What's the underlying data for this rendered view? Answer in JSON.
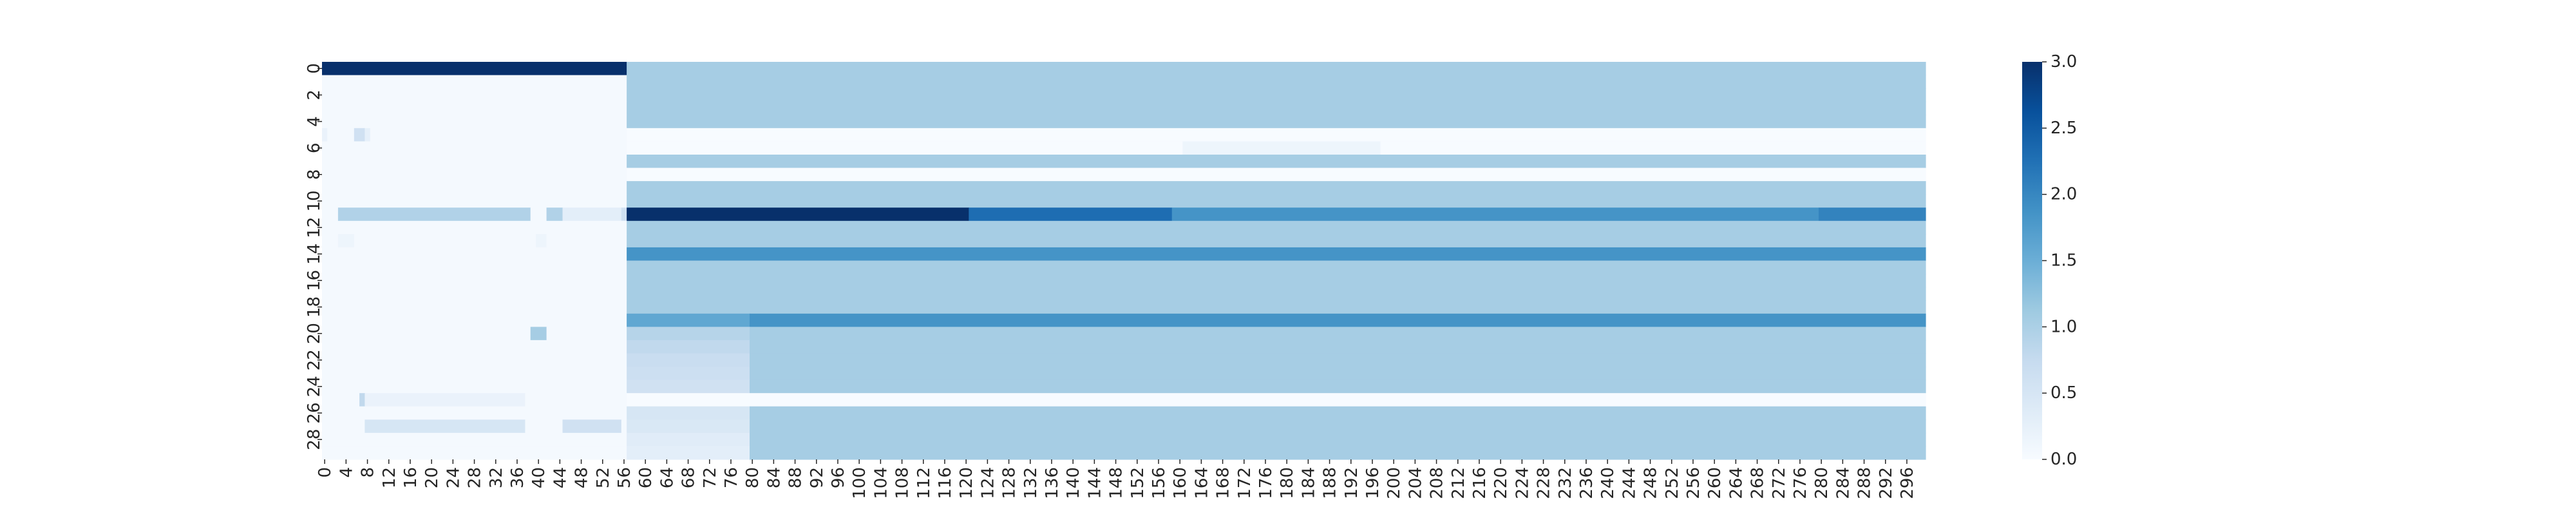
{
  "chart_data": {
    "type": "heatmap",
    "title": "",
    "xlabel": "",
    "ylabel": "",
    "n_rows": 30,
    "n_cols": 300,
    "x_tick_step": 4,
    "y_tick_step": 2,
    "colorbar": {
      "vmin": 0.0,
      "vmax": 3.0,
      "ticks": [
        "0.0",
        "0.5",
        "1.0",
        "1.5",
        "2.0",
        "2.5",
        "3.0"
      ],
      "colormap": "Blues",
      "stops": [
        "#f7fbff",
        "#deebf7",
        "#c6dbef",
        "#9ecae1",
        "#6baed6",
        "#4292c6",
        "#2171b5",
        "#08519c",
        "#08306b"
      ]
    },
    "default_value": 0.05,
    "row_blocks": [
      {
        "row": 0,
        "segments": [
          [
            0,
            56,
            3.0
          ],
          [
            57,
            299,
            1.05
          ]
        ]
      },
      {
        "row": 1,
        "segments": [
          [
            0,
            56,
            0.05
          ],
          [
            57,
            299,
            1.05
          ]
        ]
      },
      {
        "row": 2,
        "segments": [
          [
            0,
            56,
            0.05
          ],
          [
            57,
            299,
            1.05
          ]
        ]
      },
      {
        "row": 3,
        "segments": [
          [
            0,
            56,
            0.05
          ],
          [
            57,
            299,
            1.05
          ]
        ]
      },
      {
        "row": 4,
        "segments": [
          [
            0,
            56,
            0.05
          ],
          [
            57,
            299,
            1.05
          ]
        ]
      },
      {
        "row": 5,
        "segments": [
          [
            0,
            0,
            0.2
          ],
          [
            1,
            5,
            0.05
          ],
          [
            6,
            7,
            0.6
          ],
          [
            8,
            8,
            0.25
          ],
          [
            9,
            56,
            0.05
          ],
          [
            57,
            299,
            0.0
          ]
        ]
      },
      {
        "row": 6,
        "segments": [
          [
            0,
            56,
            0.05
          ],
          [
            57,
            160,
            0.0
          ],
          [
            161,
            197,
            0.15
          ],
          [
            198,
            299,
            0.0
          ]
        ]
      },
      {
        "row": 7,
        "segments": [
          [
            0,
            56,
            0.05
          ],
          [
            57,
            299,
            1.05
          ]
        ]
      },
      {
        "row": 8,
        "segments": [
          [
            0,
            56,
            0.05
          ],
          [
            57,
            299,
            0.0
          ]
        ]
      },
      {
        "row": 9,
        "segments": [
          [
            0,
            56,
            0.05
          ],
          [
            57,
            299,
            1.05
          ]
        ]
      },
      {
        "row": 10,
        "segments": [
          [
            0,
            56,
            0.05
          ],
          [
            57,
            299,
            1.05
          ]
        ]
      },
      {
        "row": 11,
        "segments": [
          [
            0,
            2,
            0.05
          ],
          [
            3,
            38,
            0.95
          ],
          [
            39,
            41,
            0.05
          ],
          [
            42,
            44,
            0.95
          ],
          [
            45,
            55,
            0.3
          ],
          [
            56,
            56,
            0.6
          ],
          [
            57,
            120,
            3.0
          ],
          [
            121,
            158,
            2.3
          ],
          [
            159,
            279,
            1.85
          ],
          [
            280,
            299,
            2.05
          ]
        ]
      },
      {
        "row": 12,
        "segments": [
          [
            0,
            56,
            0.05
          ],
          [
            57,
            299,
            1.05
          ]
        ]
      },
      {
        "row": 13,
        "segments": [
          [
            0,
            2,
            0.05
          ],
          [
            3,
            5,
            0.15
          ],
          [
            6,
            39,
            0.05
          ],
          [
            40,
            41,
            0.15
          ],
          [
            42,
            56,
            0.05
          ],
          [
            57,
            299,
            1.05
          ]
        ]
      },
      {
        "row": 14,
        "segments": [
          [
            0,
            56,
            0.05
          ],
          [
            57,
            299,
            1.85
          ]
        ]
      },
      {
        "row": 15,
        "segments": [
          [
            0,
            56,
            0.05
          ],
          [
            57,
            299,
            1.05
          ]
        ]
      },
      {
        "row": 16,
        "segments": [
          [
            0,
            56,
            0.05
          ],
          [
            57,
            299,
            1.05
          ]
        ]
      },
      {
        "row": 17,
        "segments": [
          [
            0,
            56,
            0.05
          ],
          [
            57,
            299,
            1.05
          ]
        ]
      },
      {
        "row": 18,
        "segments": [
          [
            0,
            56,
            0.05
          ],
          [
            57,
            299,
            1.05
          ]
        ]
      },
      {
        "row": 19,
        "segments": [
          [
            0,
            56,
            0.05
          ],
          [
            57,
            79,
            1.6
          ],
          [
            80,
            299,
            1.85
          ]
        ]
      },
      {
        "row": 20,
        "segments": [
          [
            0,
            38,
            0.05
          ],
          [
            39,
            41,
            1.05
          ],
          [
            42,
            56,
            0.05
          ],
          [
            57,
            79,
            0.9
          ],
          [
            80,
            299,
            1.05
          ]
        ]
      },
      {
        "row": 21,
        "segments": [
          [
            0,
            56,
            0.05
          ],
          [
            57,
            79,
            0.8
          ],
          [
            80,
            299,
            1.05
          ]
        ]
      },
      {
        "row": 22,
        "segments": [
          [
            0,
            56,
            0.05
          ],
          [
            57,
            79,
            0.7
          ],
          [
            80,
            299,
            1.05
          ]
        ]
      },
      {
        "row": 23,
        "segments": [
          [
            0,
            56,
            0.05
          ],
          [
            57,
            79,
            0.65
          ],
          [
            80,
            299,
            1.05
          ]
        ]
      },
      {
        "row": 24,
        "segments": [
          [
            0,
            56,
            0.05
          ],
          [
            57,
            79,
            0.6
          ],
          [
            80,
            299,
            1.05
          ]
        ]
      },
      {
        "row": 25,
        "segments": [
          [
            0,
            6,
            0.05
          ],
          [
            7,
            7,
            0.8
          ],
          [
            8,
            37,
            0.2
          ],
          [
            38,
            56,
            0.05
          ],
          [
            57,
            299,
            0.0
          ]
        ]
      },
      {
        "row": 26,
        "segments": [
          [
            0,
            56,
            0.05
          ],
          [
            57,
            79,
            0.5
          ],
          [
            80,
            299,
            1.05
          ]
        ]
      },
      {
        "row": 27,
        "segments": [
          [
            0,
            7,
            0.05
          ],
          [
            8,
            37,
            0.5
          ],
          [
            38,
            44,
            0.05
          ],
          [
            45,
            55,
            0.6
          ],
          [
            56,
            56,
            0.05
          ],
          [
            57,
            79,
            0.45
          ],
          [
            80,
            299,
            1.05
          ]
        ]
      },
      {
        "row": 28,
        "segments": [
          [
            0,
            56,
            0.05
          ],
          [
            57,
            79,
            0.35
          ],
          [
            80,
            299,
            1.05
          ]
        ]
      },
      {
        "row": 29,
        "segments": [
          [
            0,
            56,
            0.05
          ],
          [
            57,
            79,
            0.3
          ],
          [
            80,
            299,
            1.05
          ]
        ]
      }
    ]
  }
}
